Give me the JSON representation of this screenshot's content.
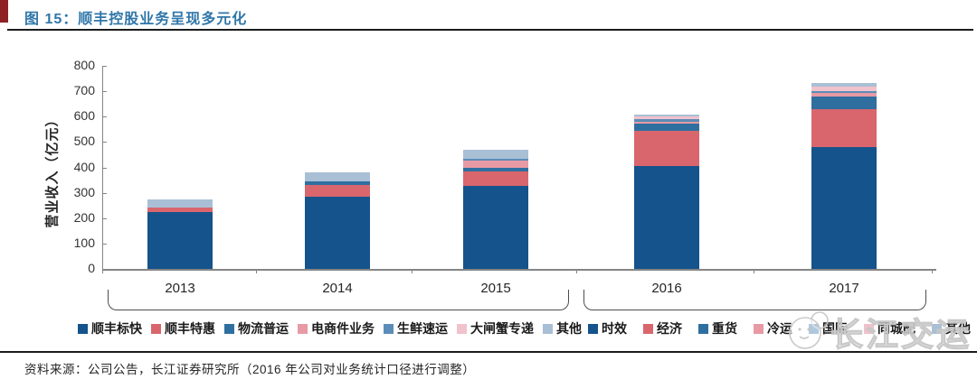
{
  "figure": {
    "title": "图 15：顺丰控股业务呈现多元化",
    "source_note": "资料来源：公司公告，长江证券研究所（2016 年公司对业务统计口径进行调整）",
    "watermark": "长江交运"
  },
  "chart_data": {
    "type": "bar",
    "stacked": true,
    "title": "顺丰控股业务呈现多元化",
    "ylabel": "营业收入（亿元）",
    "ylim": [
      0,
      800
    ],
    "yticks": [
      0,
      100,
      200,
      300,
      400,
      500,
      600,
      700,
      800
    ],
    "grid": false,
    "legend_position": "bottom",
    "group1": {
      "categories": [
        "2013",
        "2014",
        "2015"
      ],
      "series": [
        {
          "name": "顺丰标快",
          "color": "#14538C",
          "values": [
            224,
            285,
            327
          ]
        },
        {
          "name": "顺丰特惠",
          "color": "#D9666D",
          "values": [
            18,
            47,
            57
          ]
        },
        {
          "name": "物流普运",
          "color": "#2F6FA0",
          "values": [
            0,
            12,
            14
          ]
        },
        {
          "name": "电商件业务",
          "color": "#E79AA4",
          "values": [
            0,
            0,
            29
          ]
        },
        {
          "name": "生鲜速运",
          "color": "#5B8DB8",
          "values": [
            0,
            0,
            7
          ]
        },
        {
          "name": "大闸蟹专递",
          "color": "#F0C2CB",
          "values": [
            0,
            0,
            0
          ]
        },
        {
          "name": "其他",
          "color": "#A9BFD5",
          "values": [
            32,
            36,
            36
          ]
        }
      ]
    },
    "group2": {
      "categories": [
        "2016",
        "2017"
      ],
      "series": [
        {
          "name": "时效",
          "color": "#14538C",
          "values": [
            405,
            481
          ]
        },
        {
          "name": "经济",
          "color": "#D9666D",
          "values": [
            140,
            147
          ]
        },
        {
          "name": "重货",
          "color": "#2F6FA0",
          "values": [
            28,
            50
          ]
        },
        {
          "name": "冷运",
          "color": "#E79AA4",
          "values": [
            8,
            14
          ]
        },
        {
          "name": "国际",
          "color": "#5B8DB8",
          "values": [
            10,
            7
          ]
        },
        {
          "name": "同城配",
          "color": "#F0C2CB",
          "values": [
            10,
            21
          ]
        },
        {
          "name": "其他",
          "color": "#A9BFD5",
          "values": [
            8,
            14
          ]
        }
      ]
    }
  }
}
